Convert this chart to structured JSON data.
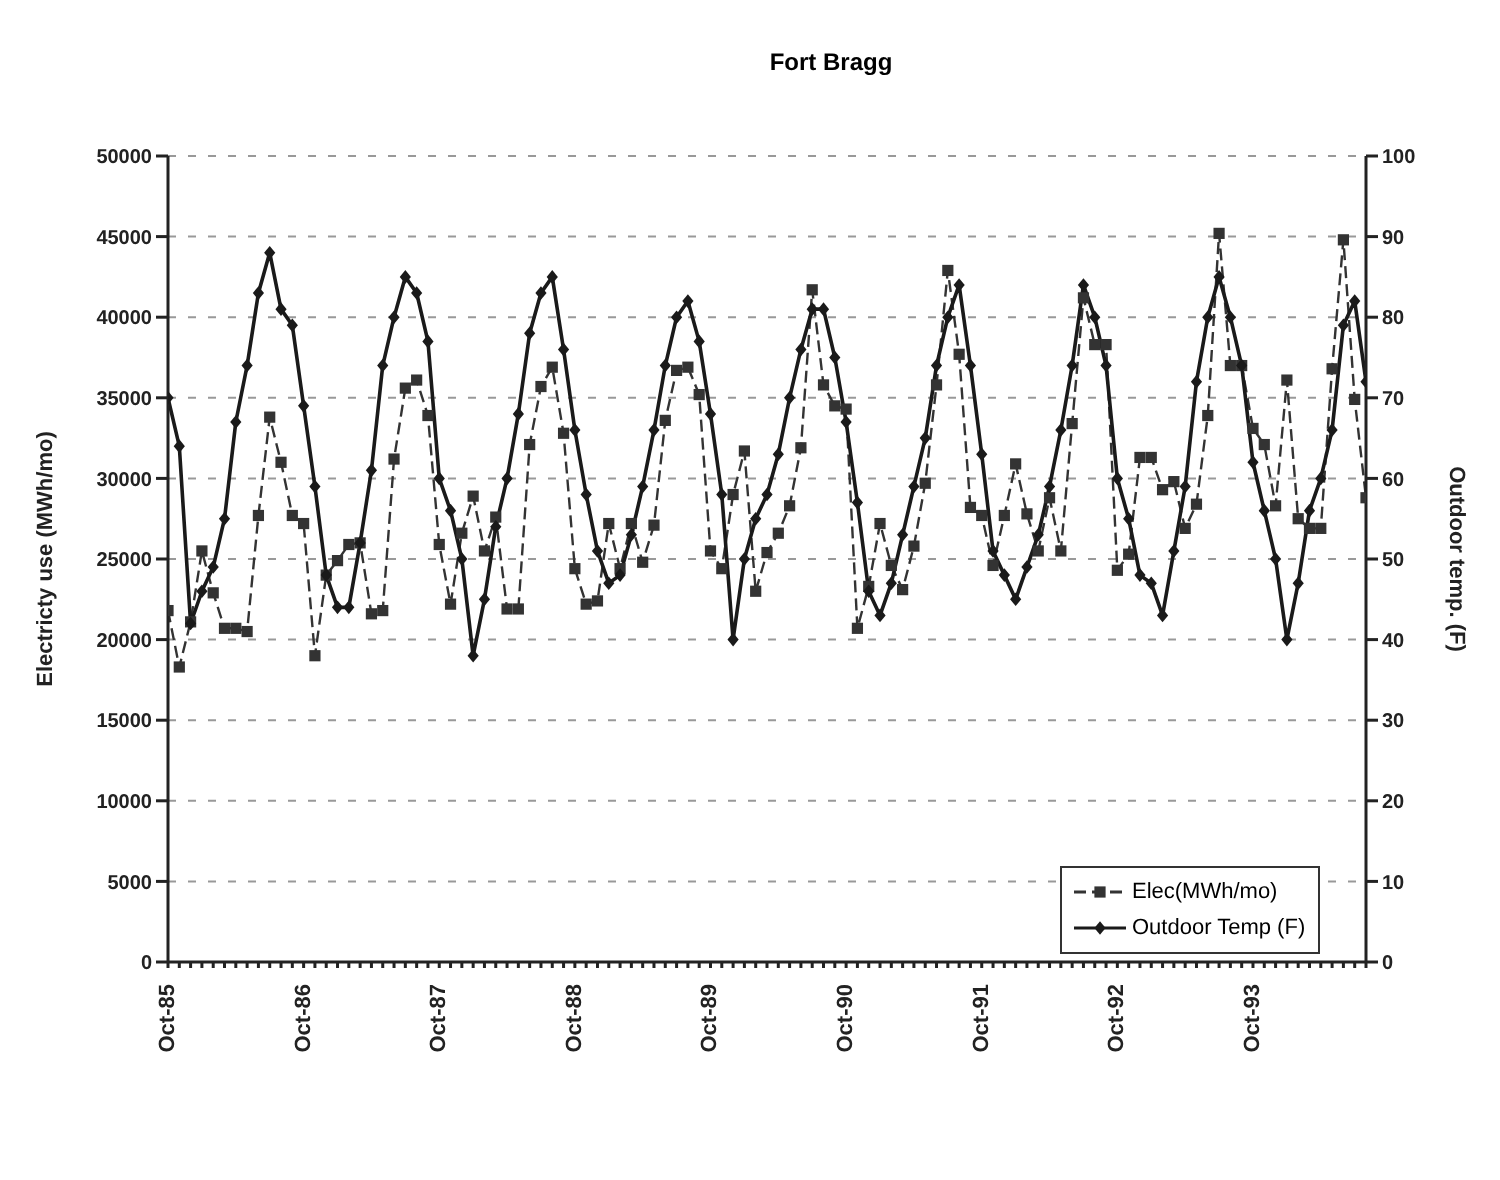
{
  "chart_data": {
    "type": "line",
    "title": "Fort Bragg",
    "ylabel": "Electricty use (MWh/mo)",
    "y2label": "Outdoor temp. (F)",
    "categories": [
      "Oct-85",
      null,
      null,
      null,
      null,
      null,
      null,
      null,
      null,
      null,
      null,
      null,
      "Oct-86",
      null,
      null,
      null,
      null,
      null,
      null,
      null,
      null,
      null,
      null,
      null,
      "Oct-87",
      null,
      null,
      null,
      null,
      null,
      null,
      null,
      null,
      null,
      null,
      null,
      "Oct-88",
      null,
      null,
      null,
      null,
      null,
      null,
      null,
      null,
      null,
      null,
      null,
      "Oct-89",
      null,
      null,
      null,
      null,
      null,
      null,
      null,
      null,
      null,
      null,
      null,
      "Oct-90",
      null,
      null,
      null,
      null,
      null,
      null,
      null,
      null,
      null,
      null,
      null,
      "Oct-91",
      null,
      null,
      null,
      null,
      null,
      null,
      null,
      null,
      null,
      null,
      null,
      "Oct-92",
      null,
      null,
      null,
      null,
      null,
      null,
      null,
      null,
      null,
      null,
      null,
      "Oct-93",
      null,
      null,
      null,
      null,
      null,
      null,
      null,
      null,
      null,
      null
    ],
    "series": [
      {
        "name": "Elec(MWh/mo)",
        "color": "#333333",
        "marker": "square",
        "line_style": "dashed",
        "values": [
          21800,
          18300,
          21100,
          25500,
          22900,
          20700,
          20700,
          20500,
          27700,
          33800,
          31000,
          27700,
          27200,
          19000,
          24000,
          24900,
          25900,
          26000,
          21600,
          21800,
          31200,
          35600,
          36100,
          33900,
          25900,
          22200,
          26600,
          28900,
          25500,
          27600,
          21900,
          21900,
          32100,
          35700,
          36900,
          32800,
          24400,
          22200,
          22400,
          27200,
          24400,
          27200,
          24800,
          27100,
          33600,
          36700,
          36900,
          35200,
          25500,
          24400,
          29000,
          31700,
          23000,
          25400,
          26600,
          28300,
          31900,
          41700,
          35800,
          34500,
          34300,
          20700,
          23300,
          27200,
          24600,
          23100,
          25800,
          29700,
          35800,
          42900,
          37700,
          28200,
          27700,
          24600,
          27700,
          30900,
          27800,
          25500,
          28800,
          25500,
          33400,
          41200,
          38300,
          38300,
          24300,
          25300,
          31300,
          31300,
          29300,
          29800,
          26900,
          28400,
          33900,
          45200,
          37000,
          37000,
          33100,
          32100,
          28300,
          36100,
          27500,
          26900,
          26900,
          36800,
          44800,
          34900,
          28800
        ]
      },
      {
        "name": "Outdoor Temp (F)",
        "color": "#1a1a1a",
        "marker": "diamond",
        "line_style": "solid",
        "axis": "y2",
        "values": [
          70,
          64,
          42,
          46,
          49,
          55,
          67,
          74,
          83,
          88,
          81,
          79,
          69,
          59,
          48,
          44,
          44,
          52,
          61,
          74,
          80,
          85,
          83,
          77,
          60,
          56,
          50,
          38,
          45,
          54,
          60,
          68,
          78,
          83,
          85,
          76,
          66,
          58,
          51,
          47,
          48,
          53,
          59,
          66,
          74,
          80,
          82,
          77,
          68,
          58,
          40,
          50,
          55,
          58,
          63,
          70,
          76,
          81,
          81,
          75,
          67,
          57,
          46,
          43,
          47,
          53,
          59,
          65,
          74,
          80,
          84,
          74,
          63,
          51,
          48,
          45,
          49,
          53,
          59,
          66,
          74,
          84,
          80,
          74,
          60,
          55,
          48,
          47,
          43,
          51,
          59,
          72,
          80,
          85,
          80,
          74,
          62,
          56,
          50,
          40,
          47,
          56,
          60,
          66,
          79,
          82,
          72
        ]
      }
    ],
    "ylim": [
      0,
      50000
    ],
    "yticks": [
      0,
      5000,
      10000,
      15000,
      20000,
      25000,
      30000,
      35000,
      40000,
      45000,
      50000
    ],
    "y2lim": [
      0,
      100
    ],
    "y2ticks": [
      0,
      10,
      20,
      30,
      40,
      50,
      60,
      70,
      80,
      90,
      100
    ],
    "grid": "y",
    "legend": "bottom right"
  }
}
